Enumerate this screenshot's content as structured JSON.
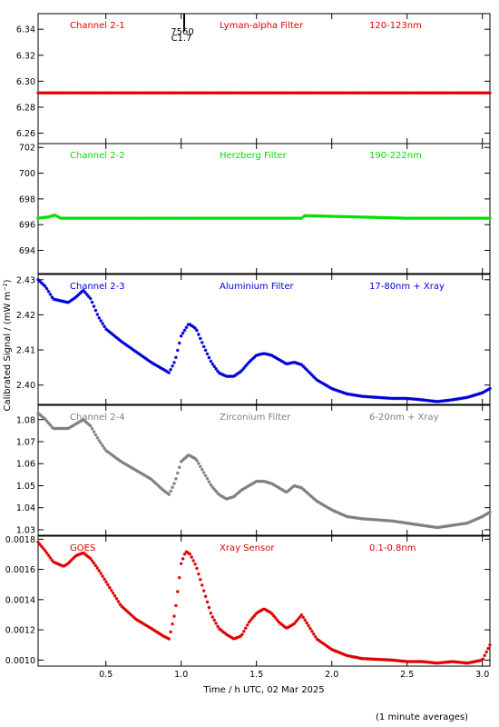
{
  "chart_data": {
    "type": "scatter",
    "xlabel": "Time / h UTC, 02 Mar 2025",
    "ylabel": "Calibrated Signal / (mW m⁻²)",
    "footnote": "(1 minute averages)",
    "xlim": [
      0.05,
      3.05
    ],
    "xticks": [
      0.5,
      1.0,
      1.5,
      2.0,
      2.5,
      3.0
    ],
    "xtick_labels": [
      "0.5",
      "1.0",
      "1.5",
      "2.0",
      "2.5",
      "3.0"
    ],
    "flare_marker": {
      "x": 1.02,
      "number": "7560",
      "class": "C1.7"
    },
    "panels": [
      {
        "channel": "Channel 2-1",
        "filter": "Lyman-alpha Filter",
        "band": "120-123nm",
        "color": "#e00000",
        "ylim": [
          6.252,
          6.352
        ],
        "yticks": [
          6.26,
          6.28,
          6.3,
          6.32,
          6.34
        ],
        "ytick_labels": [
          "6.26",
          "6.28",
          "6.30",
          "6.32",
          "6.34"
        ],
        "series": [
          {
            "x": [
              0.05,
              0.6,
              1.2,
              1.8,
              2.4,
              3.05
            ],
            "y": [
              6.291,
              6.291,
              6.291,
              6.291,
              6.291,
              6.291
            ]
          }
        ]
      },
      {
        "channel": "Channel 2-2",
        "filter": "Herzberg Filter",
        "band": "190-222nm",
        "color": "#00e000",
        "ylim": [
          692.2,
          702.3
        ],
        "yticks": [
          694,
          696,
          698,
          700,
          702
        ],
        "ytick_labels": [
          "694",
          "696",
          "698",
          "700",
          "702"
        ],
        "series": [
          {
            "x": [
              0.05,
              0.12,
              0.16,
              0.2,
              1.0,
              1.8,
              1.82,
              2.5,
              3.05
            ],
            "y": [
              696.5,
              696.6,
              696.75,
              696.5,
              696.5,
              696.5,
              696.7,
              696.5,
              696.5
            ]
          }
        ]
      },
      {
        "channel": "Channel 2-3",
        "filter": "Aluminium Filter",
        "band": "17-80nm + Xray",
        "color": "#0000d8",
        "ylim": [
          2.3945,
          2.4315
        ],
        "yticks": [
          2.4,
          2.41,
          2.42,
          2.43
        ],
        "ytick_labels": [
          "2.40",
          "2.41",
          "2.42",
          "2.43"
        ],
        "series": [
          {
            "x": [
              0.05,
              0.1,
              0.15,
              0.25,
              0.3,
              0.35,
              0.4,
              0.45,
              0.5,
              0.6,
              0.7,
              0.8,
              0.88,
              0.92,
              0.96,
              1.0,
              1.05,
              1.1,
              1.15,
              1.2,
              1.25,
              1.3,
              1.35,
              1.4,
              1.45,
              1.5,
              1.55,
              1.6,
              1.7,
              1.75,
              1.8,
              1.9,
              2.0,
              2.1,
              2.2,
              2.4,
              2.5,
              2.6,
              2.7,
              2.8,
              2.9,
              3.0,
              3.05
            ],
            "y": [
              2.43,
              2.428,
              2.4245,
              2.4235,
              2.425,
              2.427,
              2.4245,
              2.4195,
              2.416,
              2.4125,
              2.4095,
              2.4065,
              2.4045,
              2.4035,
              2.407,
              2.414,
              2.4175,
              2.416,
              2.411,
              2.4065,
              2.4035,
              2.4025,
              2.4025,
              2.404,
              2.4065,
              2.4085,
              2.409,
              2.4085,
              2.406,
              2.4065,
              2.4058,
              2.4015,
              2.399,
              2.3975,
              2.3968,
              2.3962,
              2.3962,
              2.3958,
              2.3953,
              2.3958,
              2.3965,
              2.3978,
              2.399
            ]
          }
        ]
      },
      {
        "channel": "Channel 2-4",
        "filter": "Zirconium Filter",
        "band": "6-20nm + Xray",
        "color": "#7f7f7f",
        "ylim": [
          1.0275,
          1.0865
        ],
        "yticks": [
          1.03,
          1.04,
          1.05,
          1.06,
          1.07,
          1.08
        ],
        "ytick_labels": [
          "1.03",
          "1.04",
          "1.05",
          "1.06",
          "1.07",
          "1.08"
        ],
        "series": [
          {
            "x": [
              0.05,
              0.1,
              0.15,
              0.25,
              0.3,
              0.35,
              0.4,
              0.45,
              0.5,
              0.6,
              0.7,
              0.8,
              0.88,
              0.92,
              0.96,
              1.0,
              1.05,
              1.1,
              1.15,
              1.2,
              1.25,
              1.3,
              1.35,
              1.4,
              1.45,
              1.5,
              1.55,
              1.6,
              1.7,
              1.75,
              1.8,
              1.9,
              2.0,
              2.1,
              2.2,
              2.4,
              2.5,
              2.6,
              2.7,
              2.8,
              2.9,
              3.0,
              3.05
            ],
            "y": [
              1.083,
              1.08,
              1.076,
              1.076,
              1.078,
              1.08,
              1.077,
              1.071,
              1.066,
              1.061,
              1.057,
              1.053,
              1.048,
              1.046,
              1.052,
              1.061,
              1.064,
              1.062,
              1.056,
              1.05,
              1.046,
              1.044,
              1.045,
              1.048,
              1.05,
              1.052,
              1.052,
              1.051,
              1.047,
              1.05,
              1.049,
              1.043,
              1.039,
              1.036,
              1.035,
              1.034,
              1.033,
              1.032,
              1.031,
              1.032,
              1.033,
              1.036,
              1.038
            ]
          }
        ]
      },
      {
        "channel": "GOES",
        "filter": "Xray Sensor",
        "band": "0.1-0.8nm",
        "color": "#e00000",
        "ylim": [
          0.00096,
          0.00182
        ],
        "yticks": [
          0.001,
          0.0012,
          0.0014,
          0.0016,
          0.0018
        ],
        "ytick_labels": [
          "0.0010",
          "0.0012",
          "0.0014",
          "0.0016",
          "0.0018"
        ],
        "series": [
          {
            "x": [
              0.05,
              0.1,
              0.15,
              0.22,
              0.25,
              0.3,
              0.35,
              0.4,
              0.45,
              0.5,
              0.6,
              0.7,
              0.8,
              0.88,
              0.92,
              0.96,
              1.0,
              1.03,
              1.06,
              1.1,
              1.15,
              1.2,
              1.25,
              1.3,
              1.35,
              1.4,
              1.45,
              1.5,
              1.55,
              1.6,
              1.65,
              1.7,
              1.75,
              1.8,
              1.9,
              2.0,
              2.1,
              2.2,
              2.4,
              2.5,
              2.6,
              2.7,
              2.8,
              2.9,
              3.0,
              3.05
            ],
            "y": [
              0.00178,
              0.00172,
              0.00165,
              0.00162,
              0.00164,
              0.00169,
              0.00171,
              0.00167,
              0.0016,
              0.00152,
              0.00136,
              0.00127,
              0.00121,
              0.00116,
              0.00114,
              0.00132,
              0.00164,
              0.00172,
              0.0017,
              0.00162,
              0.00146,
              0.0013,
              0.00121,
              0.00117,
              0.00114,
              0.00116,
              0.00125,
              0.00131,
              0.00134,
              0.00131,
              0.00125,
              0.00121,
              0.00124,
              0.0013,
              0.00114,
              0.00107,
              0.00103,
              0.00101,
              0.001,
              0.00099,
              0.00099,
              0.00098,
              0.00099,
              0.00098,
              0.001,
              0.0011
            ]
          }
        ]
      }
    ]
  }
}
